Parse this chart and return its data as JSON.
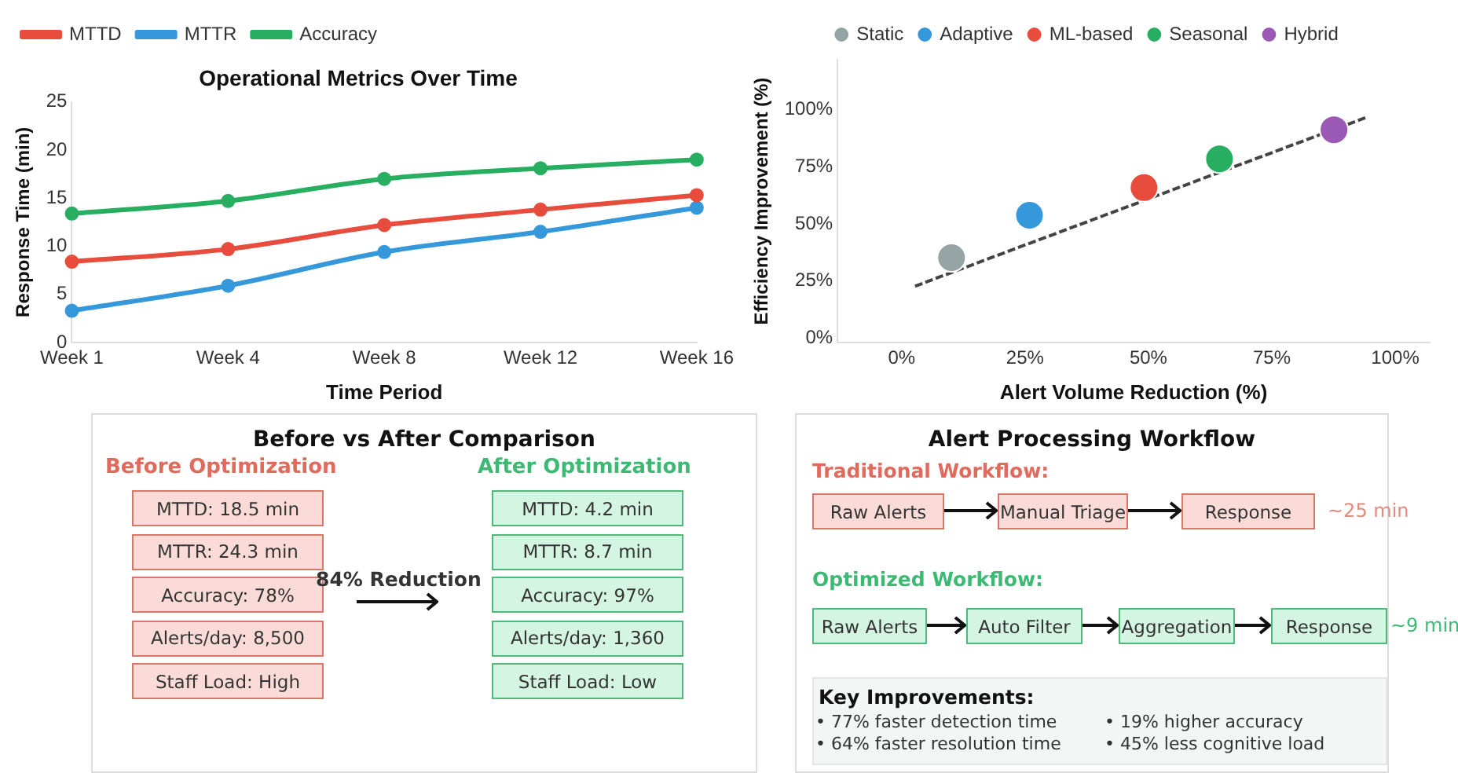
{
  "chart_data": [
    {
      "type": "line",
      "title": "Operational Metrics Over Time",
      "xlabel": "Time Period",
      "ylabel": "Response Time (min)",
      "categories": [
        "Week 1",
        "Week 4",
        "Week 8",
        "Week 12",
        "Week 16"
      ],
      "ylim": [
        0,
        25
      ],
      "yticks": [
        0,
        5,
        10,
        15,
        20,
        25
      ],
      "legend": "top left",
      "marker": "circle",
      "series": [
        {
          "name": "MTTD",
          "color": "#e74c3c",
          "values": [
            8.4,
            9.7,
            12.2,
            13.8,
            15.3
          ]
        },
        {
          "name": "MTTR",
          "color": "#3498db",
          "values": [
            3.3,
            5.9,
            9.4,
            11.5,
            14.0
          ]
        },
        {
          "name": "Accuracy",
          "color": "#27ae60",
          "values": [
            13.4,
            14.7,
            17.0,
            18.1,
            19.0
          ]
        }
      ]
    },
    {
      "type": "scatter",
      "xlabel": "Alert Volume Reduction (%)",
      "ylabel": "Efficiency Improvement (%)",
      "xlim": [
        -13,
        107
      ],
      "ylim": [
        -2,
        122
      ],
      "xticks": [
        {
          "value": 0,
          "label": "0%"
        },
        {
          "value": 25,
          "label": "25%"
        },
        {
          "value": 50,
          "label": "50%"
        },
        {
          "value": 75,
          "label": "75%"
        },
        {
          "value": 100,
          "label": "100%"
        }
      ],
      "yticks": [
        {
          "value": 0,
          "label": "0%"
        },
        {
          "value": 25,
          "label": "25%"
        },
        {
          "value": 50,
          "label": "50%"
        },
        {
          "value": 75,
          "label": "75%"
        },
        {
          "value": 100,
          "label": "100%"
        }
      ],
      "legend": "top",
      "series": [
        {
          "name": "Static",
          "color": "#95a5a6",
          "marker": "circle",
          "x": [
            10.1
          ],
          "values": [
            35.2
          ]
        },
        {
          "name": "Adaptive",
          "color": "#3498db",
          "marker": "circle",
          "x": [
            25.9
          ],
          "values": [
            53.8
          ]
        },
        {
          "name": "ML-based",
          "color": "#e74c3c",
          "marker": "circle",
          "x": [
            49.1
          ],
          "values": [
            65.9
          ]
        },
        {
          "name": "Seasonal",
          "color": "#27ae60",
          "marker": "circle",
          "x": [
            64.4
          ],
          "values": [
            78.5
          ]
        },
        {
          "name": "Hybrid",
          "color": "#9b59b6",
          "marker": "circle",
          "x": [
            87.6
          ],
          "values": [
            91.3
          ]
        },
        {
          "type": "line",
          "color": "#444444",
          "line_style": "dashed",
          "marker": "none",
          "x": [
            2.7,
            94.5
          ],
          "values": [
            22.7,
            97.0
          ]
        }
      ]
    },
    {
      "type": "other",
      "title": "Before vs After Comparison",
      "annotations": [
        "Before Optimization",
        "After Optimization",
        "MTTD: 18.5 min",
        "MTTR: 24.3 min",
        "Accuracy: 78%",
        "Alerts/day: 8,500",
        "Staff Load: High",
        "84% Reduction",
        "MTTD: 4.2 min",
        "MTTR: 8.7 min",
        "Accuracy: 97%",
        "Alerts/day: 1,360",
        "Staff Load: Low"
      ]
    },
    {
      "type": "other",
      "title": "Alert Processing Workflow",
      "annotations": [
        "Traditional Workflow:",
        "Raw Alerts",
        "Manual Triage",
        "Response",
        "~25 min",
        "Optimized Workflow:",
        "Raw Alerts",
        "Auto Filter",
        "Aggregation",
        "Response",
        "~9 min",
        "Key Improvements:",
        "• 77% faster detection time",
        "• 19% higher accuracy",
        "• 64% faster resolution time",
        "• 45% less cognitive load"
      ]
    }
  ]
}
